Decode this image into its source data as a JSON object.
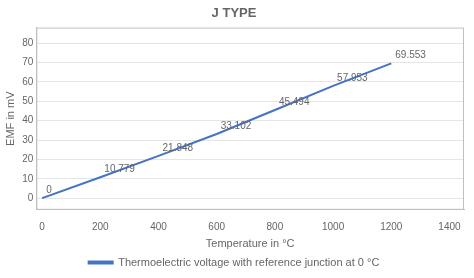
{
  "chart_data": {
    "type": "line",
    "title": "J TYPE",
    "xlabel": "Temperature in °C",
    "ylabel": "EMF in mV",
    "x": [
      0,
      200,
      400,
      600,
      800,
      1000,
      1200
    ],
    "series": [
      {
        "name": "Thermoelectric voltage with reference junction at 0 °C",
        "color": "#4472C4",
        "values": [
          0,
          10.779,
          21.848,
          33.102,
          45.494,
          57.953,
          69.553
        ]
      }
    ],
    "xlim": [
      -20,
      1450
    ],
    "ylim": [
      -6,
      88
    ],
    "xticks": [
      0,
      200,
      400,
      600,
      800,
      1000,
      1200,
      1400
    ],
    "yticks": [
      0,
      10,
      20,
      30,
      40,
      50,
      60,
      70,
      80
    ],
    "grid": "y",
    "legend": "bottom",
    "data_labels": true
  }
}
